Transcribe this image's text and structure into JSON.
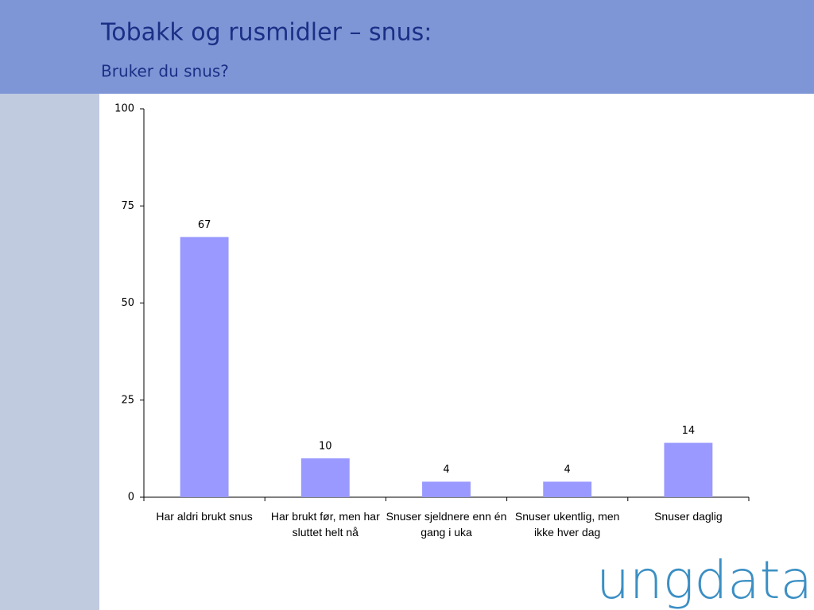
{
  "chart_data": {
    "type": "bar",
    "title": "Tobakk og rusmidler – snus:",
    "subtitle": "Bruker du snus?",
    "categories": [
      "Har aldri brukt snus",
      "Har brukt før, men har sluttet helt nå",
      "Snuser sjeldnere enn én gang i uka",
      "Snuser ukentlig, men ikke hver dag",
      "Snuser daglig"
    ],
    "values": [
      67,
      10,
      4,
      4,
      14
    ],
    "color": "#9999ff",
    "ylim": [
      0,
      100
    ],
    "yticks": [
      0,
      25,
      50,
      75,
      100
    ],
    "grid": false
  },
  "logo": "ungdata"
}
